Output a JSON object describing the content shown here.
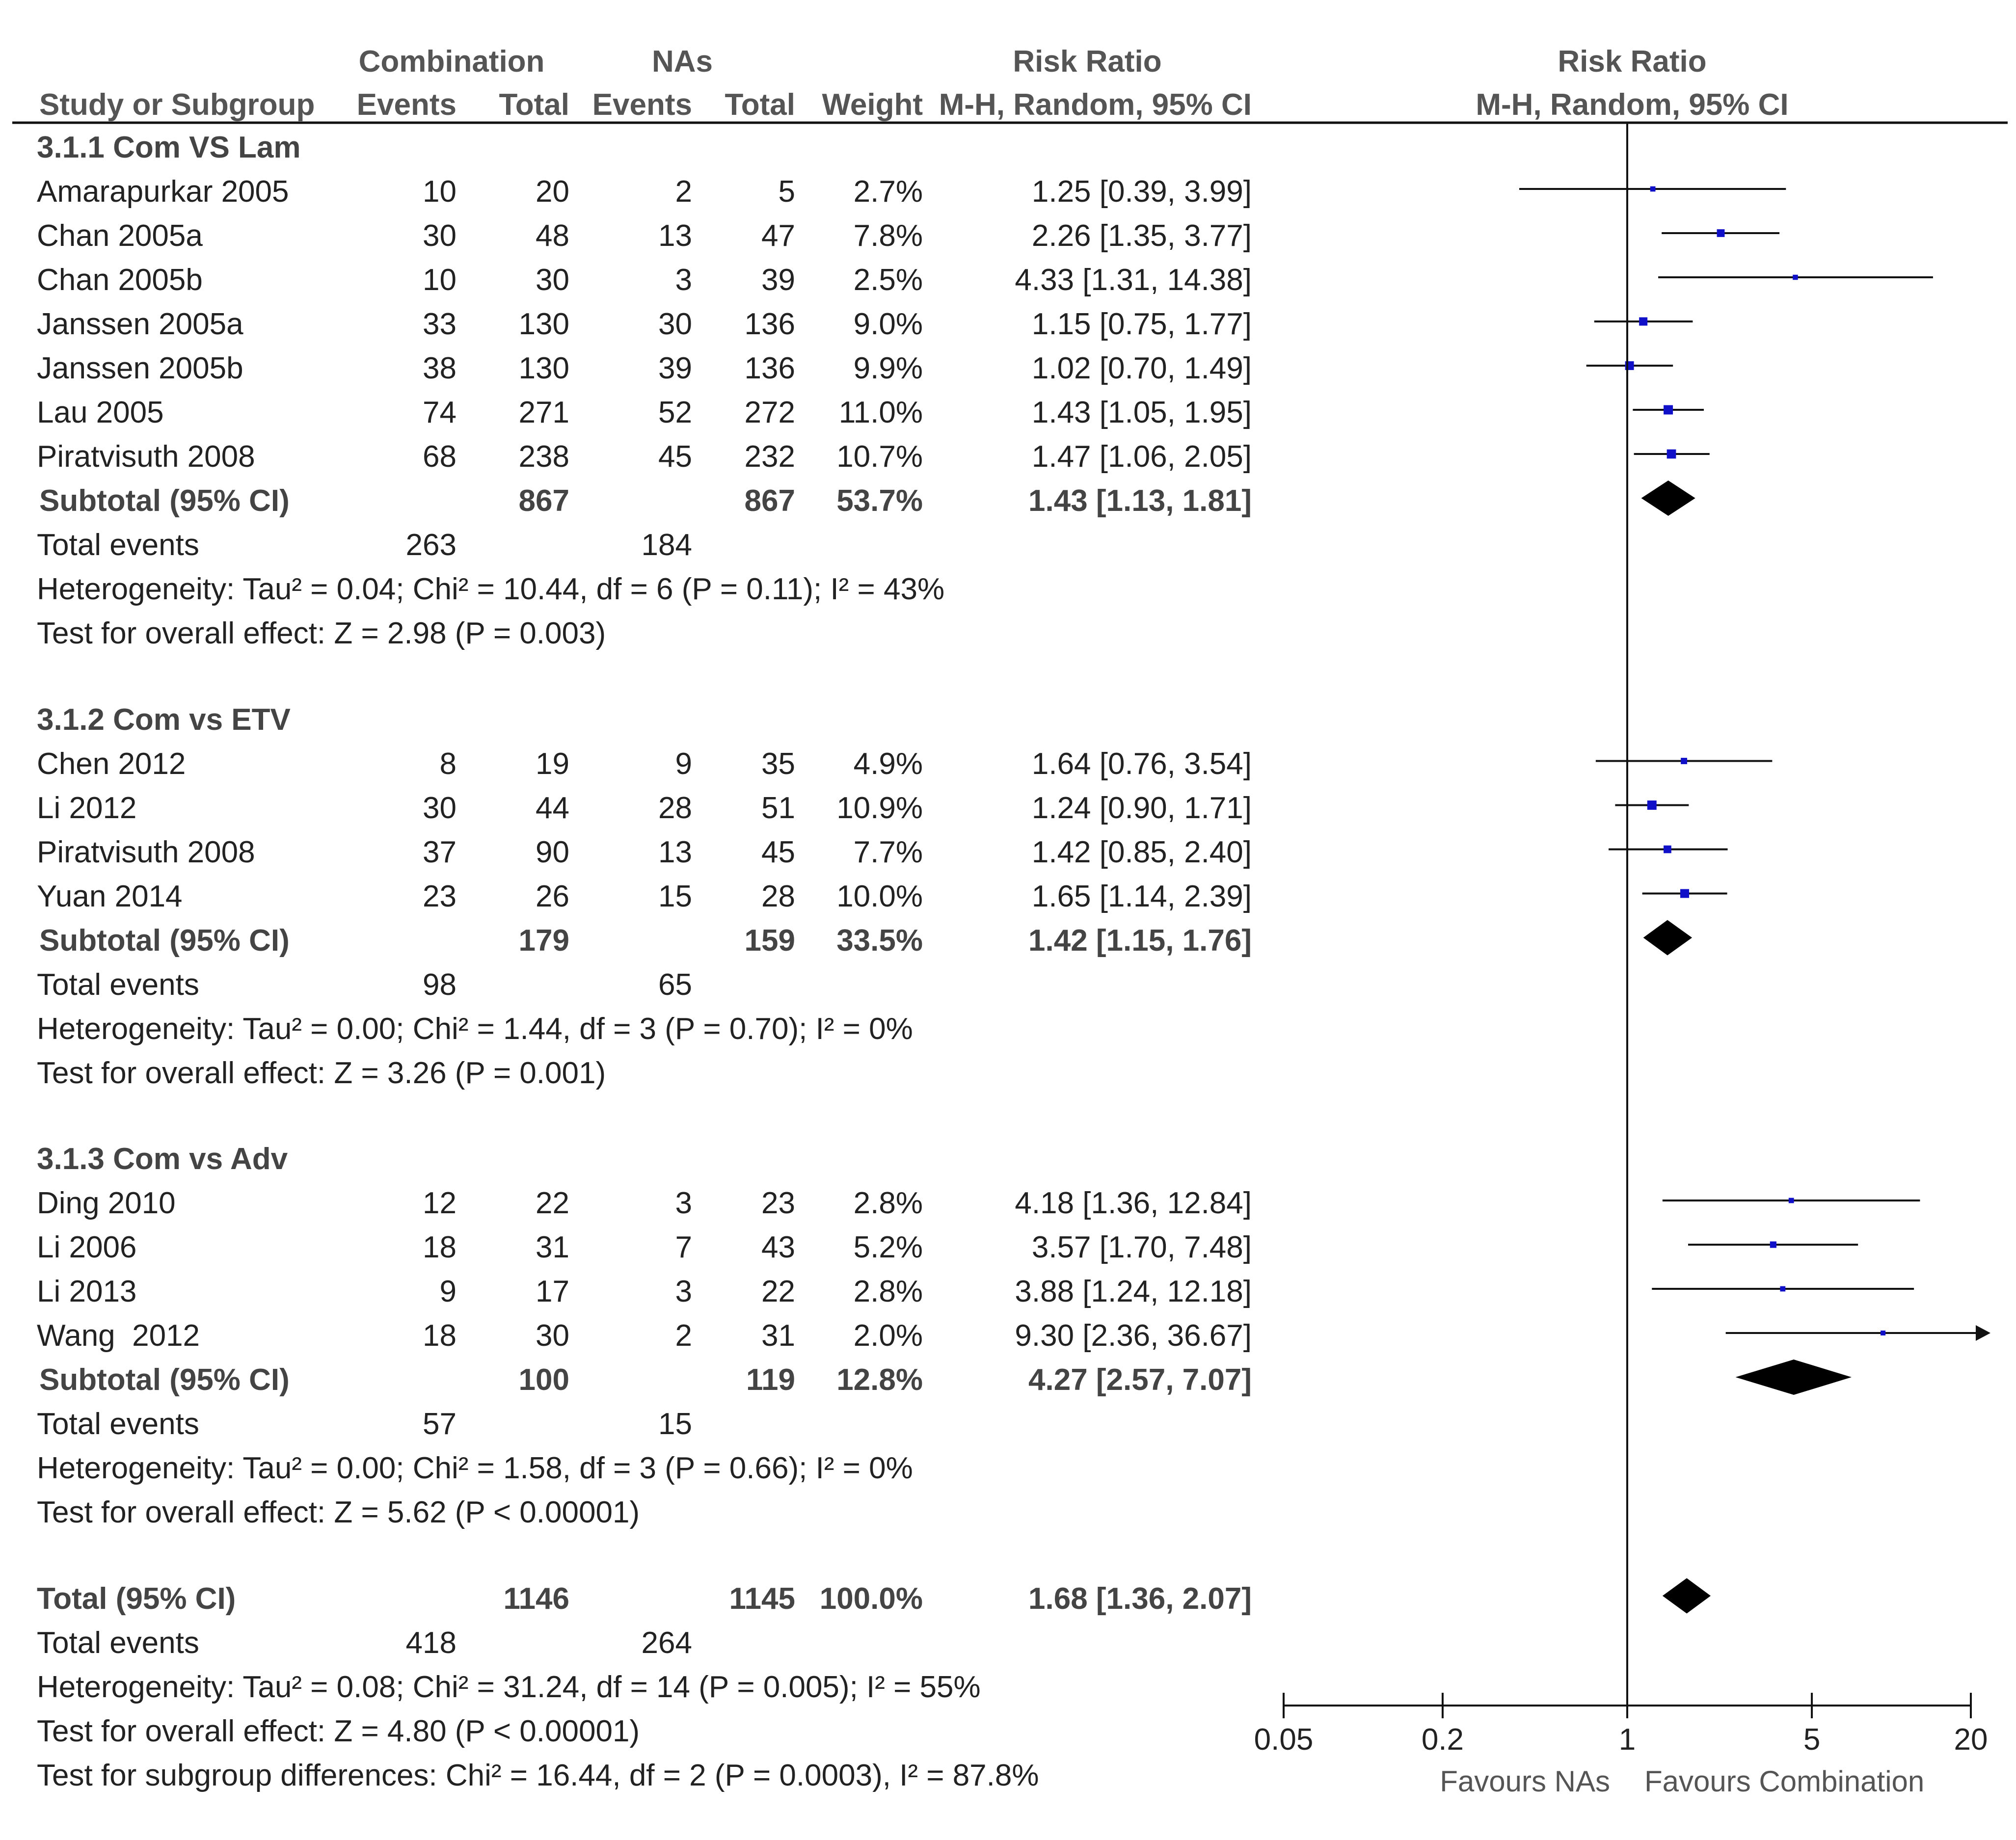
{
  "headers": {
    "group1": "Combination",
    "group2": "NAs",
    "rr_title": "Risk Ratio",
    "plot_title": "Risk Ratio",
    "study": "Study or Subgroup",
    "events": "Events",
    "total": "Total",
    "weight": "Weight",
    "method": "M-H, Random, 95% CI",
    "plot_method": "M-H, Random, 95% CI"
  },
  "chart_data": {
    "type": "forest",
    "scale": "log",
    "ticks": [
      "0.05",
      "0.2",
      "1",
      "5",
      "20"
    ],
    "tick_values": [
      0.05,
      0.2,
      1,
      5,
      20
    ],
    "favours_left": "Favours NAs",
    "favours_right": "Favours Combination",
    "subgroups": [
      {
        "title": "3.1.1 Com VS Lam",
        "studies": [
          {
            "name": "Amarapurkar 2005",
            "e1": "10",
            "t1": "20",
            "e2": "2",
            "t2": "5",
            "weight": "2.7%",
            "ci_text": "1.25 [0.39, 3.99]",
            "rr": 1.25,
            "lo": 0.39,
            "hi": 3.99
          },
          {
            "name": "Chan 2005a",
            "e1": "30",
            "t1": "48",
            "e2": "13",
            "t2": "47",
            "weight": "7.8%",
            "ci_text": "2.26 [1.35, 3.77]",
            "rr": 2.26,
            "lo": 1.35,
            "hi": 3.77
          },
          {
            "name": "Chan 2005b",
            "e1": "10",
            "t1": "30",
            "e2": "3",
            "t2": "39",
            "weight": "2.5%",
            "ci_text": "4.33 [1.31, 14.38]",
            "rr": 4.33,
            "lo": 1.31,
            "hi": 14.38
          },
          {
            "name": "Janssen 2005a",
            "e1": "33",
            "t1": "130",
            "e2": "30",
            "t2": "136",
            "weight": "9.0%",
            "ci_text": "1.15 [0.75, 1.77]",
            "rr": 1.15,
            "lo": 0.75,
            "hi": 1.77
          },
          {
            "name": "Janssen 2005b",
            "e1": "38",
            "t1": "130",
            "e2": "39",
            "t2": "136",
            "weight": "9.9%",
            "ci_text": "1.02 [0.70, 1.49]",
            "rr": 1.02,
            "lo": 0.7,
            "hi": 1.49
          },
          {
            "name": "Lau 2005",
            "e1": "74",
            "t1": "271",
            "e2": "52",
            "t2": "272",
            "weight": "11.0%",
            "ci_text": "1.43 [1.05, 1.95]",
            "rr": 1.43,
            "lo": 1.05,
            "hi": 1.95
          },
          {
            "name": "Piratvisuth 2008",
            "e1": "68",
            "t1": "238",
            "e2": "45",
            "t2": "232",
            "weight": "10.7%",
            "ci_text": "1.47 [1.06, 2.05]",
            "rr": 1.47,
            "lo": 1.06,
            "hi": 2.05
          }
        ],
        "subtotal": {
          "label": "Subtotal (95% CI)",
          "t1": "867",
          "t2": "867",
          "weight": "53.7%",
          "ci_text": "1.43 [1.13, 1.81]",
          "rr": 1.43,
          "lo": 1.13,
          "hi": 1.81
        },
        "events_label": "Total events",
        "events1": "263",
        "events2": "184",
        "heterogeneity": "Heterogeneity: Tau² = 0.04; Chi² = 10.44, df = 6 (P = 0.11); I² = 43%",
        "overall": "Test for overall effect: Z = 2.98 (P = 0.003)"
      },
      {
        "title": "3.1.2 Com vs ETV",
        "studies": [
          {
            "name": "Chen 2012",
            "e1": "8",
            "t1": "19",
            "e2": "9",
            "t2": "35",
            "weight": "4.9%",
            "ci_text": "1.64 [0.76, 3.54]",
            "rr": 1.64,
            "lo": 0.76,
            "hi": 3.54
          },
          {
            "name": "Li 2012",
            "e1": "30",
            "t1": "44",
            "e2": "28",
            "t2": "51",
            "weight": "10.9%",
            "ci_text": "1.24 [0.90, 1.71]",
            "rr": 1.24,
            "lo": 0.9,
            "hi": 1.71
          },
          {
            "name": "Piratvisuth 2008",
            "e1": "37",
            "t1": "90",
            "e2": "13",
            "t2": "45",
            "weight": "7.7%",
            "ci_text": "1.42 [0.85, 2.40]",
            "rr": 1.42,
            "lo": 0.85,
            "hi": 2.4
          },
          {
            "name": "Yuan 2014",
            "e1": "23",
            "t1": "26",
            "e2": "15",
            "t2": "28",
            "weight": "10.0%",
            "ci_text": "1.65 [1.14, 2.39]",
            "rr": 1.65,
            "lo": 1.14,
            "hi": 2.39
          }
        ],
        "subtotal": {
          "label": "Subtotal (95% CI)",
          "t1": "179",
          "t2": "159",
          "weight": "33.5%",
          "ci_text": "1.42 [1.15, 1.76]",
          "rr": 1.42,
          "lo": 1.15,
          "hi": 1.76
        },
        "events_label": "Total events",
        "events1": "98",
        "events2": "65",
        "heterogeneity": "Heterogeneity: Tau² = 0.00; Chi² = 1.44, df = 3 (P = 0.70); I² = 0%",
        "overall": "Test for overall effect: Z = 3.26 (P = 0.001)"
      },
      {
        "title": "3.1.3 Com vs Adv",
        "studies": [
          {
            "name": "Ding 2010",
            "e1": "12",
            "t1": "22",
            "e2": "3",
            "t2": "23",
            "weight": "2.8%",
            "ci_text": "4.18 [1.36, 12.84]",
            "rr": 4.18,
            "lo": 1.36,
            "hi": 12.84
          },
          {
            "name": "Li 2006",
            "e1": "18",
            "t1": "31",
            "e2": "7",
            "t2": "43",
            "weight": "5.2%",
            "ci_text": "3.57 [1.70, 7.48]",
            "rr": 3.57,
            "lo": 1.7,
            "hi": 7.48
          },
          {
            "name": "Li 2013",
            "e1": "9",
            "t1": "17",
            "e2": "3",
            "t2": "22",
            "weight": "2.8%",
            "ci_text": "3.88 [1.24, 12.18]",
            "rr": 3.88,
            "lo": 1.24,
            "hi": 12.18
          },
          {
            "name": "Wang  2012",
            "e1": "18",
            "t1": "30",
            "e2": "2",
            "t2": "31",
            "weight": "2.0%",
            "ci_text": "9.30 [2.36, 36.67]",
            "rr": 9.3,
            "lo": 2.36,
            "hi": 36.67
          }
        ],
        "subtotal": {
          "label": "Subtotal (95% CI)",
          "t1": "100",
          "t2": "119",
          "weight": "12.8%",
          "ci_text": "4.27 [2.57, 7.07]",
          "rr": 4.27,
          "lo": 2.57,
          "hi": 7.07
        },
        "events_label": "Total events",
        "events1": "57",
        "events2": "15",
        "heterogeneity": "Heterogeneity: Tau² = 0.00; Chi² = 1.58, df = 3 (P = 0.66); I² = 0%",
        "overall": "Test for overall effect: Z = 5.62 (P < 0.00001)"
      }
    ],
    "total": {
      "label": "Total (95% CI)",
      "t1": "1146",
      "t2": "1145",
      "weight": "100.0%",
      "ci_text": "1.68 [1.36, 2.07]",
      "rr": 1.68,
      "lo": 1.36,
      "hi": 2.07,
      "events_label": "Total events",
      "events1": "418",
      "events2": "264",
      "heterogeneity": "Heterogeneity: Tau² = 0.08; Chi² = 31.24, df = 14 (P = 0.005); I² = 55%",
      "overall": "Test for overall effect: Z = 4.80 (P < 0.00001)",
      "subgroup_diff": "Test for subgroup differences: Chi² = 16.44, df = 2 (P = 0.0003), I² = 87.8%"
    }
  }
}
